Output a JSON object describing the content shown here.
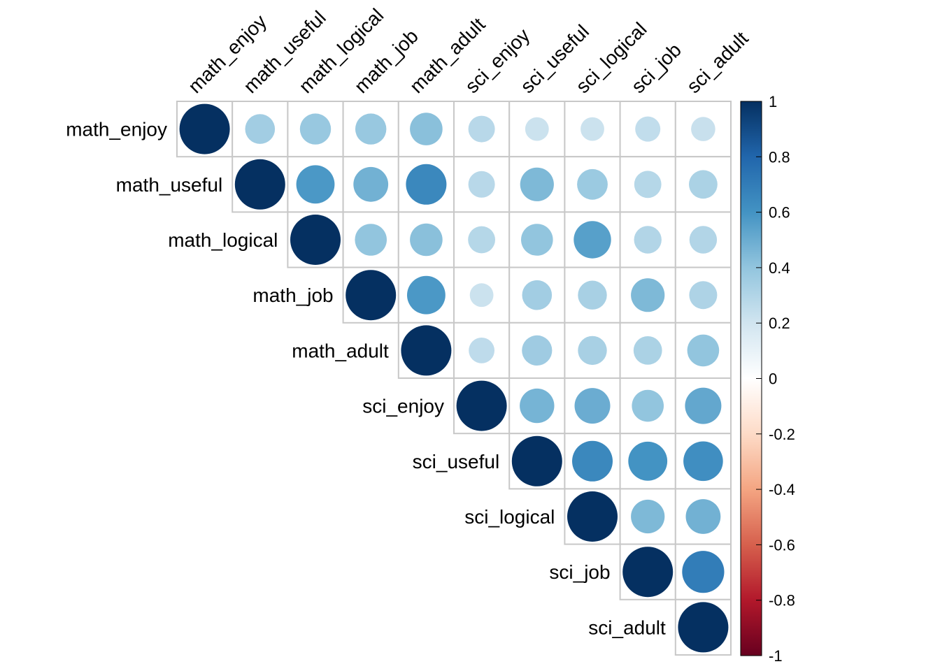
{
  "chart_data": {
    "type": "heatmap",
    "subtype": "correlation-matrix-upper-circles",
    "title": "",
    "variables": [
      "math_enjoy",
      "math_useful",
      "math_logical",
      "math_job",
      "math_adult",
      "sci_enjoy",
      "sci_useful",
      "sci_logical",
      "sci_job",
      "sci_adult"
    ],
    "matrix": [
      [
        1.0,
        0.35,
        0.38,
        0.38,
        0.42,
        0.28,
        0.22,
        0.22,
        0.25,
        0.23
      ],
      [
        0.35,
        1.0,
        0.58,
        0.48,
        0.65,
        0.28,
        0.45,
        0.37,
        0.29,
        0.32
      ],
      [
        0.38,
        0.58,
        1.0,
        0.4,
        0.42,
        0.29,
        0.4,
        0.55,
        0.3,
        0.3
      ],
      [
        0.38,
        0.48,
        0.4,
        1.0,
        0.58,
        0.22,
        0.35,
        0.33,
        0.45,
        0.31
      ],
      [
        0.42,
        0.65,
        0.42,
        0.58,
        1.0,
        0.26,
        0.36,
        0.33,
        0.32,
        0.4
      ],
      [
        0.28,
        0.28,
        0.29,
        0.22,
        0.26,
        1.0,
        0.47,
        0.5,
        0.4,
        0.52
      ],
      [
        0.22,
        0.45,
        0.4,
        0.35,
        0.36,
        0.47,
        1.0,
        0.65,
        0.6,
        0.62
      ],
      [
        0.22,
        0.37,
        0.55,
        0.33,
        0.33,
        0.5,
        0.65,
        1.0,
        0.45,
        0.48
      ],
      [
        0.25,
        0.29,
        0.3,
        0.45,
        0.32,
        0.4,
        0.6,
        0.45,
        1.0,
        0.7
      ],
      [
        0.23,
        0.32,
        0.3,
        0.31,
        0.4,
        0.52,
        0.62,
        0.48,
        0.7,
        1.0
      ]
    ],
    "colorbar": {
      "range": [
        -1,
        1
      ],
      "ticks": [
        "1",
        "0.8",
        "0.6",
        "0.4",
        "0.2",
        "0",
        "-0.2",
        "-0.4",
        "-0.6",
        "-0.8",
        "-1"
      ],
      "tick_values": [
        1,
        0.8,
        0.6,
        0.4,
        0.2,
        0,
        -0.2,
        -0.4,
        -0.6,
        -0.8,
        -1
      ],
      "palette": [
        "#67001F",
        "#B2182B",
        "#D6604D",
        "#F4A582",
        "#FDDBC7",
        "#FFFFFF",
        "#D1E5F0",
        "#92C5DE",
        "#4393C3",
        "#2166AC",
        "#053061"
      ],
      "placement": "right"
    },
    "grid_color": "#C8C8C8",
    "grid": true
  }
}
